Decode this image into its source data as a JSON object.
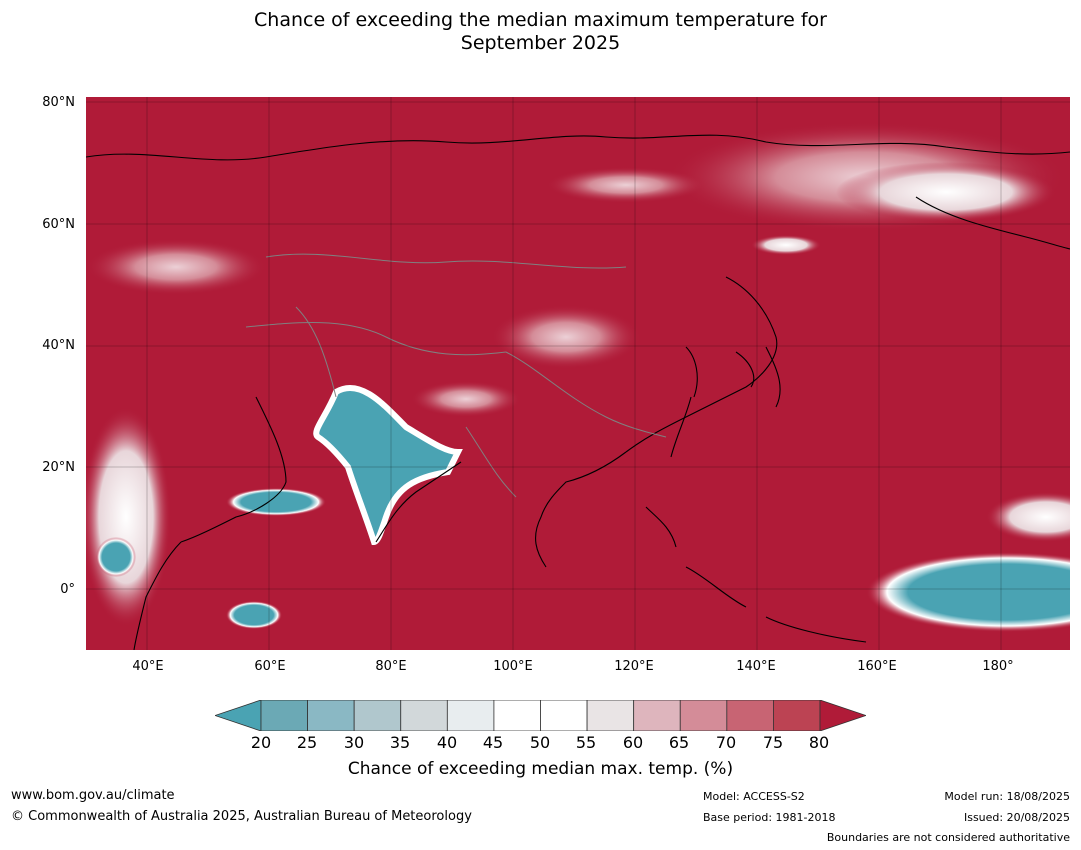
{
  "title_line1": "Chance of exceeding the median maximum temperature for",
  "title_line2": "September 2025",
  "map": {
    "lat_labels": [
      "80°N",
      "60°N",
      "40°N",
      "20°N",
      "0°"
    ],
    "lat_values": [
      80,
      60,
      40,
      20,
      0
    ],
    "lon_labels": [
      "40°E",
      "60°E",
      "80°E",
      "100°E",
      "120°E",
      "140°E",
      "160°E",
      "180°"
    ],
    "lon_values": [
      40,
      60,
      80,
      100,
      120,
      140,
      160,
      180
    ],
    "lon_range": [
      30,
      191
    ],
    "lat_range": [
      -10,
      81
    ],
    "background_color": "#b01b38"
  },
  "colorbar": {
    "ticks": [
      "20",
      "25",
      "30",
      "35",
      "40",
      "45",
      "50",
      "55",
      "60",
      "65",
      "70",
      "75",
      "80"
    ],
    "colors": [
      "#6ba9b5",
      "#8ab8c4",
      "#b0c7cd",
      "#d2d8da",
      "#e8edef",
      "#ffffff",
      "#ffffff",
      "#e9e4e5",
      "#deb5bd",
      "#d48c98",
      "#c86473",
      "#bc4353"
    ],
    "under_color": "#4aa3b3",
    "over_color": "#b01b38",
    "label": "Chance of exceeding median max. temp. (%)"
  },
  "footer": {
    "url": "www.bom.gov.au/climate",
    "copyright": "© Commonwealth of Australia 2025, Australian Bureau of Meteorology",
    "model": "Model: ACCESS-S2",
    "base_period": "Base period: 1981-2018",
    "model_run": "Model run: 18/08/2025",
    "issued": "Issued: 20/08/2025",
    "disclaimer": "Boundaries are not considered authoritative"
  }
}
